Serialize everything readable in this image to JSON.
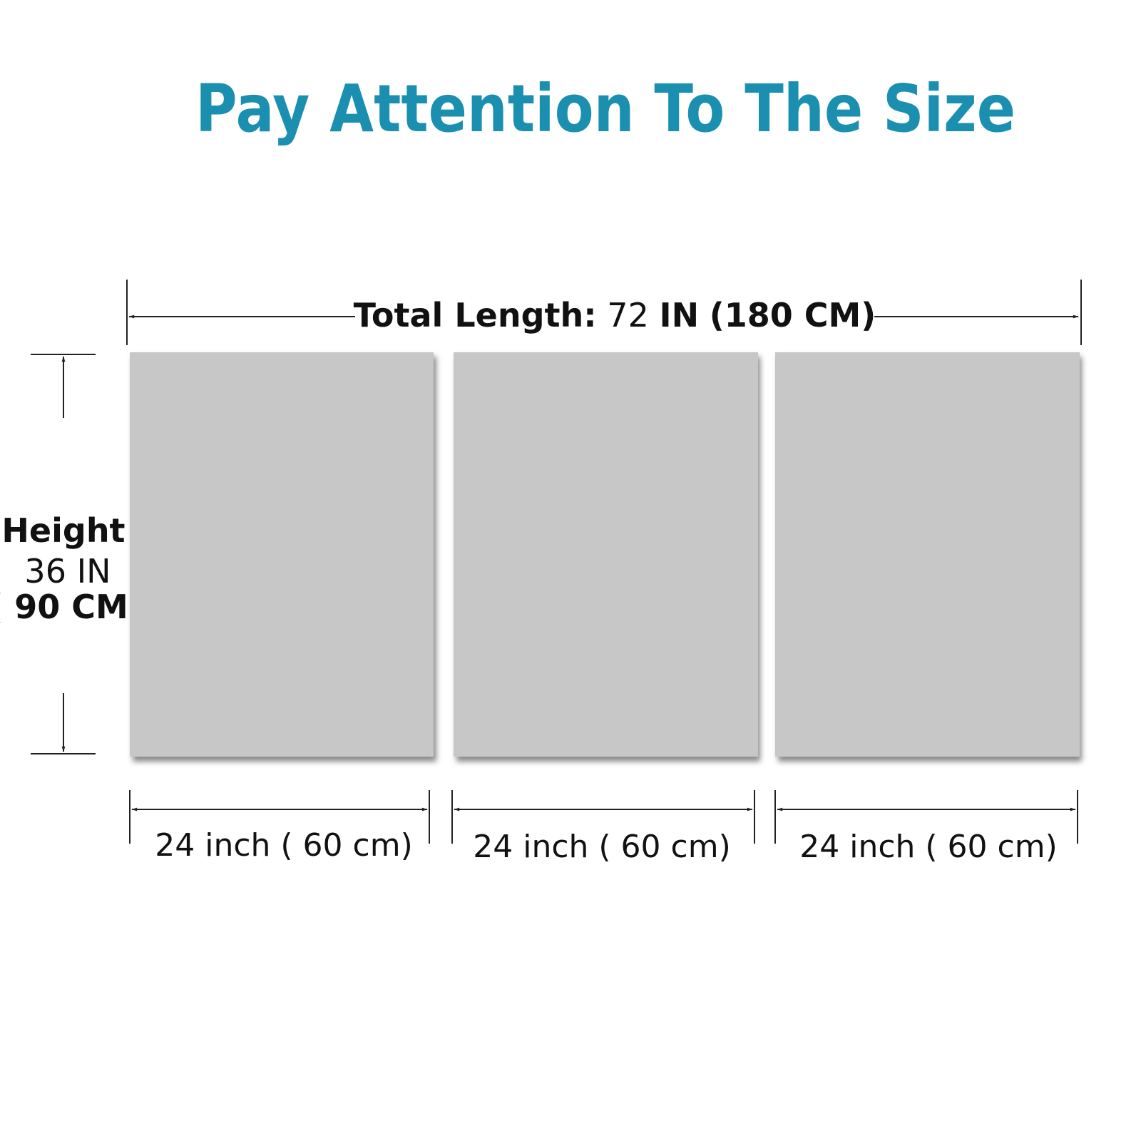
{
  "title": "Pay Attention To The Size",
  "colors": {
    "title": "#1a8fb0",
    "panel": "#c8c7c8",
    "line": "#222222"
  },
  "total_length": {
    "label": "Total Length:",
    "value": "72",
    "unit": "IN",
    "metric": "(180 CM)"
  },
  "height": {
    "label": "Height",
    "value": "36 IN",
    "metric": "( 90 CM)"
  },
  "panels": [
    {
      "width": "24 inch ( 60 cm)"
    },
    {
      "width": "24 inch ( 60 cm)"
    },
    {
      "width": "24 inch ( 60 cm)"
    }
  ]
}
